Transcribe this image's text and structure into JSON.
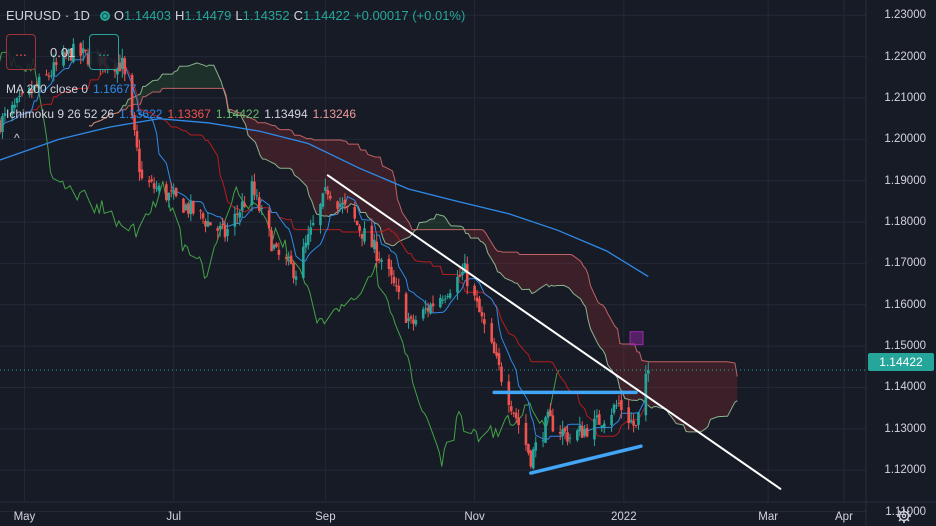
{
  "header": {
    "symbol": "EURUSD",
    "sep": "·",
    "interval": "1D",
    "o_label": "O",
    "o_value": "1.14403",
    "h_label": "H",
    "h_value": "1.14479",
    "l_label": "L",
    "l_value": "1.14352",
    "c_label": "C",
    "c_value": "1.14422",
    "change": "+0.00017 (+0.01%)"
  },
  "trade": {
    "sell_label": "...",
    "buy_label": "...",
    "spread": "0.01"
  },
  "indicators": {
    "ma_label": "MA 200 close 0",
    "ma_value": "1.16677",
    "ichimoku_label": "Ichimoku 9 26 52 26",
    "ichimoku_values": [
      "1.13622",
      "1.13367",
      "1.14422",
      "1.13494",
      "1.13246"
    ],
    "collapse_symbol": "^"
  },
  "price_tag": "1.14422",
  "colors": {
    "bull": "#26a69a",
    "bear": "#ef5350",
    "ma": "#2f8ae8",
    "tenkan": "#2f8ae8",
    "kijun": "#b71c1c",
    "chikou": "#43a047",
    "span_a": "#a5d6a7",
    "span_b": "#e57373",
    "trendline": "#ffffff",
    "range_lines": "#42a5f5",
    "marker": "#9c27b0"
  },
  "chart_data": {
    "type": "candlestick",
    "symbol": "EURUSD",
    "interval": "1D",
    "y_ticks": [
      "1.23000",
      "1.22000",
      "1.21000",
      "1.20000",
      "1.19000",
      "1.18000",
      "1.17000",
      "1.16000",
      "1.15000",
      "1.14000",
      "1.13000",
      "1.12000",
      "1.11000"
    ],
    "y_range": [
      1.1065,
      1.2337
    ],
    "x_range": [
      "2021-04-21",
      "2022-04-10"
    ],
    "x_ticks": [
      {
        "label": "May",
        "date": "2021-05-01"
      },
      {
        "label": "Jul",
        "date": "2021-07-01"
      },
      {
        "label": "Sep",
        "date": "2021-09-01"
      },
      {
        "label": "Nov",
        "date": "2021-11-01"
      },
      {
        "label": "2022",
        "date": "2022-01-01"
      },
      {
        "label": "Mar",
        "date": "2022-03-01"
      },
      {
        "label": "Apr",
        "date": "2022-04-01"
      }
    ],
    "last_close": 1.14422,
    "ma200": [
      [
        "2021-04-21",
        1.195
      ],
      [
        "2021-05-15",
        1.2
      ],
      [
        "2021-06-05",
        1.203
      ],
      [
        "2021-06-25",
        1.205
      ],
      [
        "2021-07-15",
        1.204
      ],
      [
        "2021-08-05",
        1.202
      ],
      [
        "2021-08-25",
        1.199
      ],
      [
        "2021-09-15",
        1.193
      ],
      [
        "2021-10-05",
        1.188
      ],
      [
        "2021-10-25",
        1.185
      ],
      [
        "2021-11-15",
        1.182
      ],
      [
        "2021-12-05",
        1.178
      ],
      [
        "2021-12-25",
        1.173
      ],
      [
        "2022-01-11",
        1.1668
      ]
    ],
    "trendlines": [
      {
        "name": "descending",
        "points": [
          [
            "2021-09-02",
            1.1913
          ],
          [
            "2022-03-06",
            1.1155
          ]
        ]
      },
      {
        "name": "range-top",
        "points": [
          [
            "2021-11-09",
            1.1388
          ],
          [
            "2022-01-06",
            1.1388
          ]
        ]
      },
      {
        "name": "rising-support",
        "points": [
          [
            "2021-11-24",
            1.1193
          ],
          [
            "2022-01-08",
            1.1258
          ]
        ]
      }
    ],
    "marker": {
      "date": "2022-01-06",
      "price": 1.1518
    },
    "candle_keypoints": [
      [
        "2021-04-21",
        1.204
      ],
      [
        "2021-05-10",
        1.215
      ],
      [
        "2021-05-20",
        1.221
      ],
      [
        "2021-06-10",
        1.218
      ],
      [
        "2021-06-18",
        1.19
      ],
      [
        "2021-06-30",
        1.186
      ],
      [
        "2021-07-08",
        1.183
      ],
      [
        "2021-07-22",
        1.177
      ],
      [
        "2021-08-02",
        1.188
      ],
      [
        "2021-08-12",
        1.172
      ],
      [
        "2021-08-20",
        1.168
      ],
      [
        "2021-09-02",
        1.188
      ],
      [
        "2021-09-12",
        1.181
      ],
      [
        "2021-09-24",
        1.171
      ],
      [
        "2021-10-06",
        1.155
      ],
      [
        "2021-10-16",
        1.161
      ],
      [
        "2021-10-28",
        1.168
      ],
      [
        "2021-11-10",
        1.146
      ],
      [
        "2021-11-24",
        1.123
      ],
      [
        "2021-12-01",
        1.132
      ],
      [
        "2021-12-10",
        1.128
      ],
      [
        "2021-12-20",
        1.131
      ],
      [
        "2021-12-30",
        1.136
      ],
      [
        "2022-01-06",
        1.13
      ],
      [
        "2022-01-11",
        1.1442
      ]
    ]
  }
}
